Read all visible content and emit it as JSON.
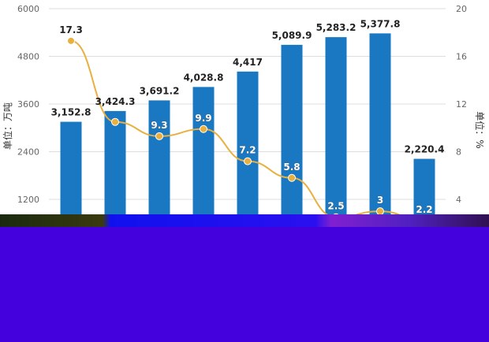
{
  "chart_data": {
    "type": "bar+line",
    "categories": [
      "",
      "",
      "",
      "",
      "",
      "",
      "",
      "",
      ""
    ],
    "series": [
      {
        "type": "bar",
        "axis": "left",
        "values": [
          3152.8,
          3424.3,
          3691.2,
          4028.8,
          4417,
          5089.9,
          5283.2,
          5377.8,
          2220.4
        ],
        "labels": [
          "3,152.8",
          "3,424.3",
          "3,691.2",
          "4,028.8",
          "4,417",
          "5,089.9",
          "5,283.2",
          "5,377.8",
          "2,220.4"
        ]
      },
      {
        "type": "line",
        "axis": "right",
        "values": [
          17.3,
          10.5,
          9.3,
          9.9,
          7.2,
          5.8,
          2.5,
          3,
          2.2
        ],
        "labels": [
          "17.3",
          "",
          "9.3",
          "9.9",
          "7.2",
          "5.8",
          "2.5",
          "3",
          "2.2"
        ]
      }
    ],
    "ylabel": "单位：万吨",
    "y2label": "单位：%",
    "ylim": [
      0,
      6000
    ],
    "y2lim": [
      0,
      20
    ],
    "yticks": [
      1200,
      2400,
      3600,
      4800,
      6000
    ],
    "y2ticks": [
      4,
      8,
      12,
      16,
      20
    ],
    "grid": true,
    "colors": {
      "bar": "#1a78c2",
      "line": "#e8b040",
      "corrupted_region": "#4400dd"
    }
  }
}
